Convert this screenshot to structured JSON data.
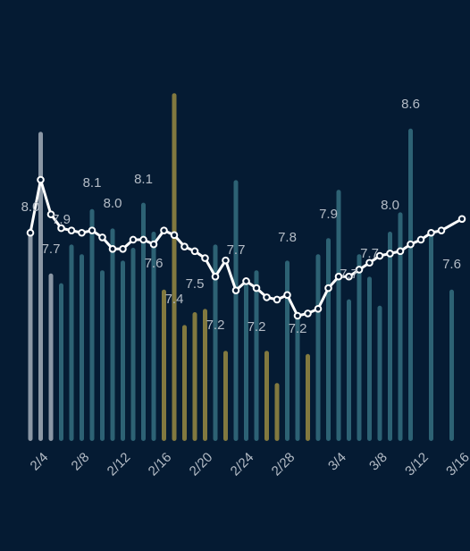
{
  "chart_data": {
    "type": "bar+line",
    "title": "",
    "xlabel": "",
    "ylabel": "",
    "grid": false,
    "legend": "none",
    "x": [
      "2/3",
      "2/4",
      "2/5",
      "2/6",
      "2/7",
      "2/8",
      "2/9",
      "2/10",
      "2/11",
      "2/12",
      "2/13",
      "2/14",
      "2/15",
      "2/16",
      "2/17",
      "2/18",
      "2/19",
      "2/20",
      "2/21",
      "2/22",
      "2/23",
      "2/24",
      "2/25",
      "2/26",
      "2/27",
      "2/28",
      "2/29",
      "3/1",
      "3/2",
      "3/3",
      "3/4",
      "3/5",
      "3/6",
      "3/7",
      "3/8",
      "3/9",
      "3/10",
      "3/11",
      "3/12",
      "3/13",
      "3/14",
      "3/15",
      "3/16"
    ],
    "x_tick_labels": [
      "2/4",
      "2/8",
      "2/12",
      "2/16",
      "2/20",
      "2/24",
      "2/28",
      "3/4",
      "3/8",
      "3/12",
      "3/16"
    ],
    "bar_series": {
      "values": [
        0.66,
        0.96,
        0.52,
        0.49,
        0.61,
        0.58,
        0.72,
        0.53,
        0.66,
        0.56,
        0.6,
        0.74,
        0.65,
        0.47,
        1.08,
        0.36,
        0.4,
        0.41,
        0.61,
        0.28,
        0.81,
        0.49,
        0.53,
        0.28,
        0.18,
        0.56,
        0.39,
        0.27,
        0.58,
        0.63,
        0.78,
        0.44,
        0.58,
        0.51,
        0.42,
        0.65,
        0.71,
        0.97,
        null,
        0.64,
        null,
        0.47,
        null
      ],
      "categories": [
        "gray",
        "gray",
        "gray",
        "teal",
        "teal",
        "teal",
        "teal",
        "teal",
        "teal",
        "teal",
        "teal",
        "teal",
        "teal",
        "gold",
        "gold",
        "gold",
        "gold",
        "gold",
        "teal",
        "gold",
        "teal",
        "teal",
        "teal",
        "gold",
        "gold",
        "teal",
        "teal",
        "gold",
        "teal",
        "teal",
        "teal",
        "teal",
        "teal",
        "teal",
        "teal",
        "teal",
        "teal",
        "teal",
        "teal",
        "teal",
        "teal",
        "teal",
        "teal"
      ],
      "colors": {
        "gray": "#8b97a5",
        "teal": "#2d6274",
        "gold": "#82793f"
      }
    },
    "line_series": {
      "color": "#ffffff",
      "values": [
        7.81,
        8.04,
        7.89,
        7.83,
        7.82,
        7.81,
        7.82,
        7.79,
        7.74,
        7.74,
        7.78,
        7.78,
        7.76,
        7.82,
        7.8,
        7.75,
        7.73,
        7.7,
        7.62,
        7.69,
        7.56,
        7.6,
        7.57,
        7.53,
        7.52,
        7.54,
        7.45,
        7.46,
        7.48,
        7.57,
        7.62,
        7.62,
        7.65,
        7.68,
        7.71,
        7.72,
        7.73,
        7.76,
        7.78,
        7.81,
        7.82,
        null,
        7.87
      ]
    },
    "data_labels": [
      {
        "x": "2/3",
        "text": "8.0"
      },
      {
        "x": "2/5",
        "text": "7.7"
      },
      {
        "x": "2/6",
        "text": "7.9"
      },
      {
        "x": "2/9",
        "text": "8.1"
      },
      {
        "x": "2/11",
        "text": "8.0"
      },
      {
        "x": "2/14",
        "text": "8.1"
      },
      {
        "x": "2/15",
        "text": "7.6"
      },
      {
        "x": "2/17",
        "text": "7.4"
      },
      {
        "x": "2/19",
        "text": "7.5"
      },
      {
        "x": "2/21",
        "text": "7.2"
      },
      {
        "x": "2/23",
        "text": "7.7"
      },
      {
        "x": "2/25",
        "text": "7.2"
      },
      {
        "x": "2/28",
        "text": "7.8"
      },
      {
        "x": "2/29",
        "text": "7.2"
      },
      {
        "x": "3/3",
        "text": "7.9"
      },
      {
        "x": "3/5",
        "text": "7.7"
      },
      {
        "x": "3/7",
        "text": "7.7"
      },
      {
        "x": "3/9",
        "text": "8.0"
      },
      {
        "x": "3/11",
        "text": "8.6"
      },
      {
        "x": "3/15",
        "text": "7.6"
      }
    ]
  }
}
